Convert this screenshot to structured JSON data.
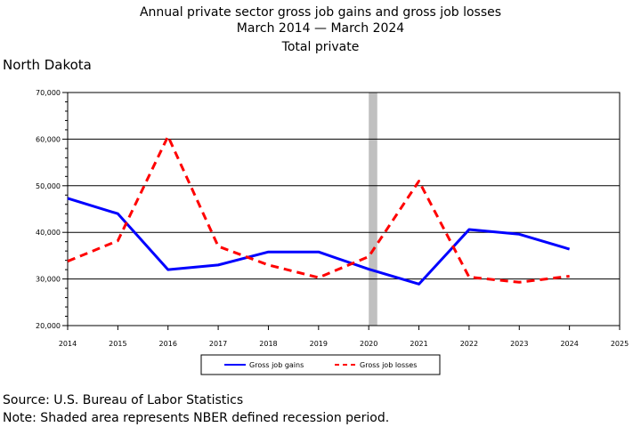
{
  "title": [
    "Annual private sector gross job gains and gross job losses",
    "March 2014 — March 2024",
    "Total private"
  ],
  "region": "North Dakota",
  "footer": {
    "source": "Source: U.S. Bureau of Labor Statistics",
    "note": "Note: Shaded area represents NBER defined recession period."
  },
  "chart_data": {
    "type": "line",
    "x": [
      2014,
      2015,
      2016,
      2017,
      2018,
      2019,
      2020,
      2021,
      2022,
      2023,
      2024
    ],
    "series": [
      {
        "name": "Gross job gains",
        "color": "#0000ff",
        "style": "solid",
        "values": [
          47300,
          44000,
          32000,
          33000,
          35800,
          35800,
          32100,
          28900,
          40600,
          39600,
          36400
        ]
      },
      {
        "name": "Gross job losses",
        "color": "#ff0000",
        "style": "dashed",
        "values": [
          33800,
          38200,
          60600,
          37000,
          33000,
          30300,
          34800,
          51000,
          30400,
          29300,
          30600
        ]
      }
    ],
    "xlim": [
      2014,
      2025
    ],
    "ylim": [
      20000,
      70000
    ],
    "x_ticks": [
      "2014",
      "2015",
      "2016",
      "2017",
      "2018",
      "2019",
      "2020",
      "2021",
      "2022",
      "2023",
      "2024",
      "2025"
    ],
    "y_ticks": [
      "20,000",
      "30,000",
      "40,000",
      "50,000",
      "60,000",
      "70,000"
    ],
    "recession": {
      "start": 2020,
      "end": 2020.17,
      "color": "#c0c0c0"
    },
    "grid": true,
    "legend": "bottom-center"
  }
}
